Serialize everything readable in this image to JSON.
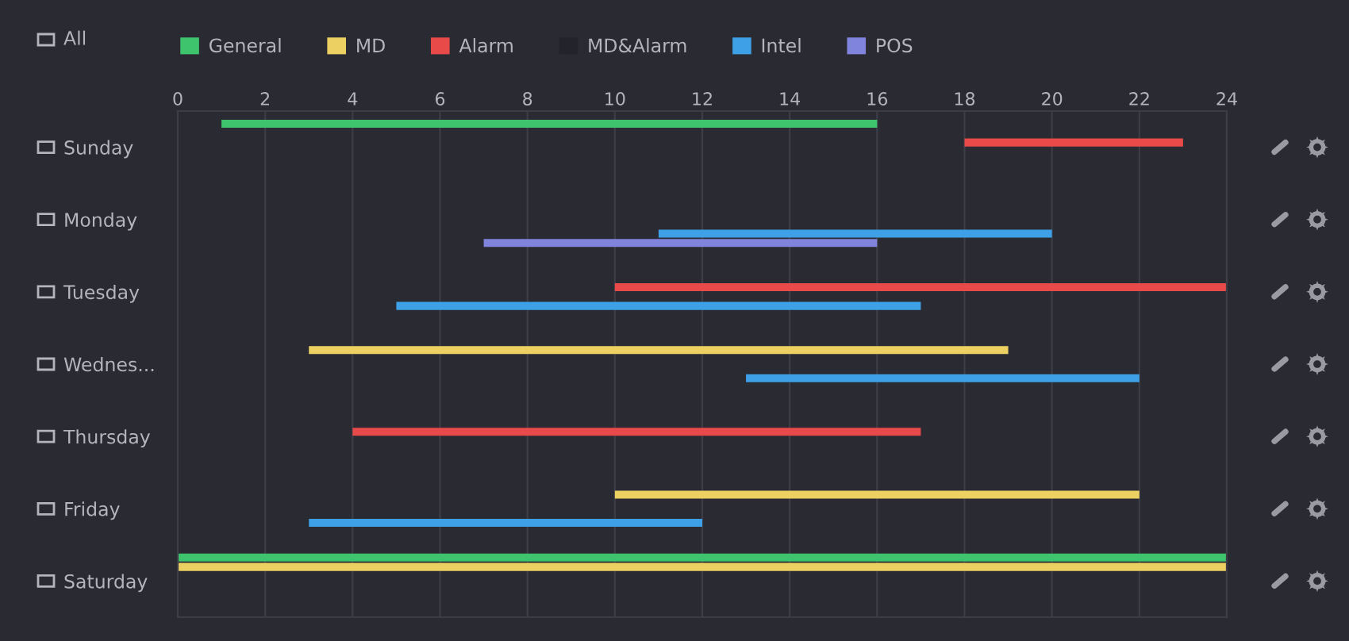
{
  "chart_data": {
    "type": "bar",
    "orientation": "horizontal",
    "categories": [
      "Sunday",
      "Monday",
      "Tuesday",
      "Wednes...",
      "Thursday",
      "Friday",
      "Saturday"
    ],
    "series": [
      {
        "name": "General",
        "color": "#3ec46c",
        "base": [
          1,
          null,
          null,
          null,
          null,
          null,
          0
        ],
        "values": [
          15,
          null,
          null,
          null,
          null,
          null,
          24
        ]
      },
      {
        "name": "MD",
        "color": "#ecd062",
        "base": [
          null,
          null,
          null,
          3,
          null,
          10,
          0
        ],
        "values": [
          null,
          null,
          null,
          16,
          null,
          12,
          24
        ]
      },
      {
        "name": "Alarm",
        "color": "#e84a4a",
        "base": [
          18,
          null,
          10,
          null,
          4,
          null,
          null
        ],
        "values": [
          5,
          null,
          14,
          null,
          13,
          null,
          null
        ]
      },
      {
        "name": "MD&Alarm",
        "color": "#23232b",
        "base": [
          null,
          null,
          null,
          null,
          null,
          null,
          null
        ],
        "values": [
          null,
          null,
          null,
          null,
          null,
          null,
          null
        ]
      },
      {
        "name": "Intel",
        "color": "#3ea0e6",
        "base": [
          null,
          11,
          5,
          13,
          null,
          3,
          null
        ],
        "values": [
          null,
          9,
          12,
          9,
          null,
          9,
          null
        ]
      },
      {
        "name": "POS",
        "color": "#8084dc",
        "base": [
          null,
          7,
          null,
          null,
          null,
          null,
          null
        ],
        "values": [
          null,
          9,
          null,
          null,
          null,
          null,
          null
        ]
      }
    ],
    "xlim": [
      0,
      24
    ],
    "xticks": [
      0,
      2,
      4,
      6,
      8,
      10,
      12,
      14,
      16,
      18,
      20,
      22,
      24
    ],
    "grid": "x",
    "legend": "top",
    "annotations": [
      "All"
    ]
  }
}
